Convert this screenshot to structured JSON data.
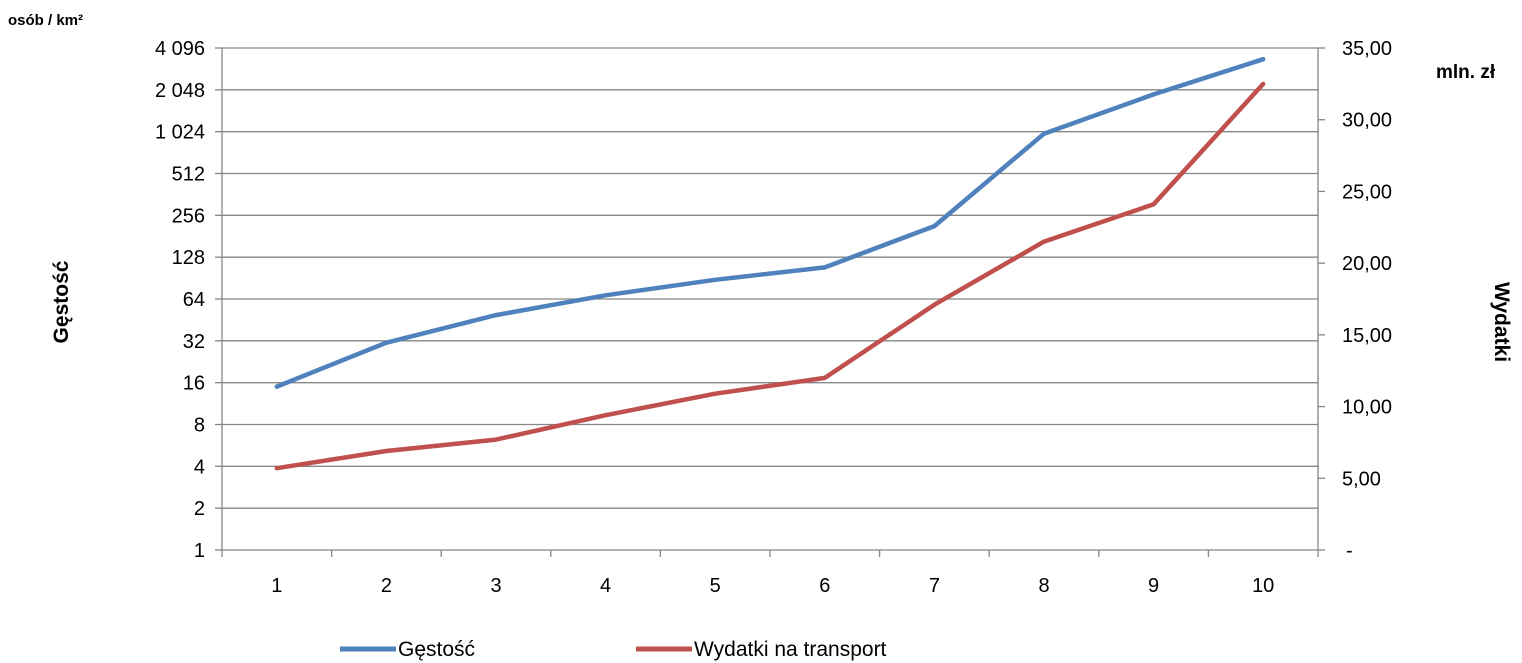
{
  "chart_data": {
    "type": "line",
    "categories": [
      "1",
      "2",
      "3",
      "4",
      "5",
      "6",
      "7",
      "8",
      "9",
      "10"
    ],
    "y_left": {
      "scale": "log2",
      "ticks": [
        1,
        2,
        4,
        8,
        16,
        32,
        64,
        128,
        256,
        512,
        1024,
        2048,
        4096
      ],
      "tick_labels": [
        "1",
        "2",
        "4",
        "8",
        "16",
        "32",
        "64",
        "128",
        "256",
        "512",
        "1 024",
        "2 048",
        "4 096"
      ],
      "unit": "osób / km²",
      "title": "Gęstość"
    },
    "y_right": {
      "scale": "linear",
      "range": [
        0,
        35
      ],
      "ticks": [
        0,
        5,
        10,
        15,
        20,
        25,
        30,
        35
      ],
      "tick_labels": [
        "-",
        "5,00",
        "10,00",
        "15,00",
        "20,00",
        "25,00",
        "30,00",
        "35,00"
      ],
      "unit": "mln. zł",
      "title": "Wydatki"
    },
    "series": [
      {
        "name": "Gęstość",
        "axis": "left",
        "color": "#4f81bd",
        "values": [
          15,
          31,
          49,
          68,
          88,
          108,
          214,
          990,
          1900,
          3400
        ]
      },
      {
        "name": "Wydatki na transport",
        "axis": "right",
        "color": "#c0504d",
        "values": [
          5.7,
          6.9,
          7.7,
          9.4,
          10.9,
          12.0,
          17.1,
          21.5,
          24.1,
          32.5
        ]
      }
    ],
    "grid": "horizontal",
    "legend_position": "bottom"
  }
}
